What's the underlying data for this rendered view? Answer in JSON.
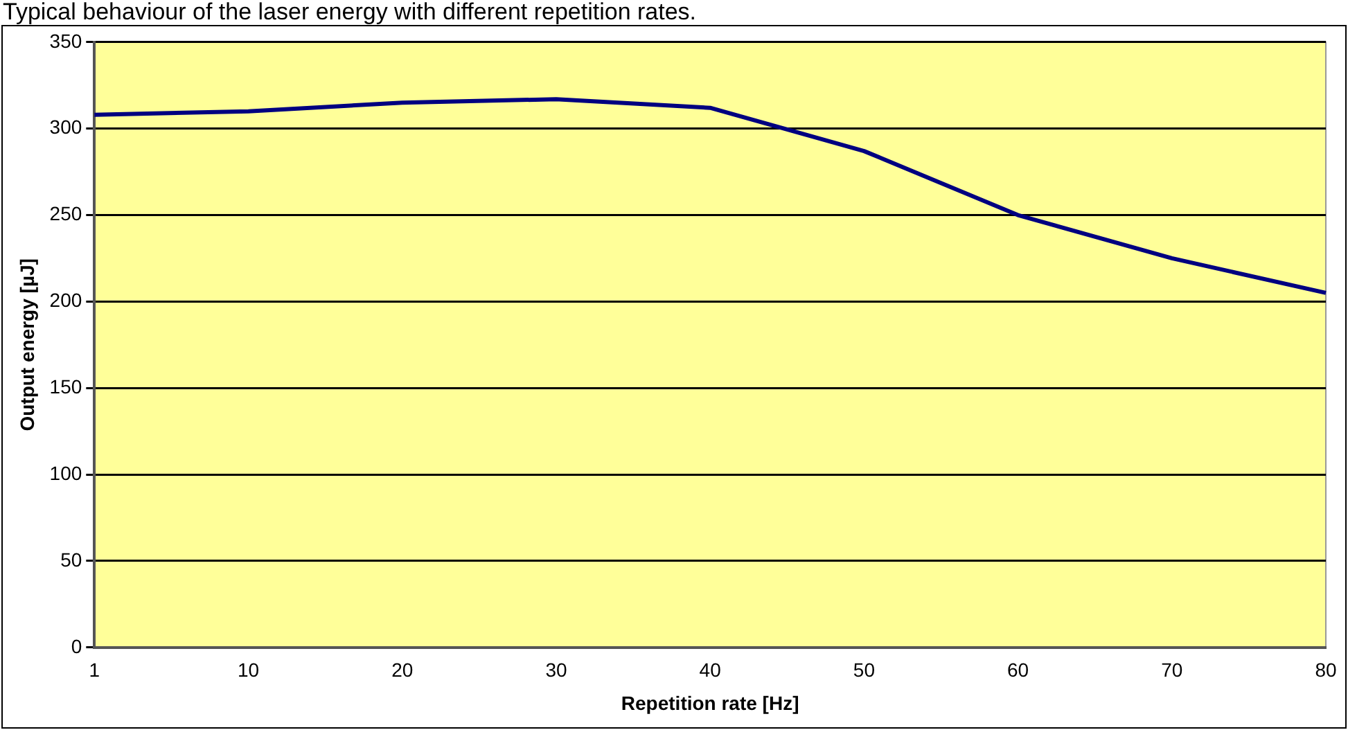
{
  "chart_data": {
    "type": "line",
    "title": "Typical behaviour of the laser energy with different repetition rates.",
    "xlabel": "Repetition rate [Hz]",
    "ylabel": "Output energy [µJ]",
    "categories": [
      "1",
      "10",
      "20",
      "30",
      "40",
      "50",
      "60",
      "70",
      "80"
    ],
    "series": [
      {
        "color": "#000080",
        "values": [
          308,
          310,
          315,
          317,
          312,
          287,
          250,
          225,
          205
        ]
      }
    ],
    "ylim": [
      0,
      350
    ],
    "yticks": [
      0,
      50,
      100,
      150,
      200,
      250,
      300,
      350
    ],
    "grid": "y",
    "legend": false,
    "marker": "none",
    "line_style": "solid"
  }
}
